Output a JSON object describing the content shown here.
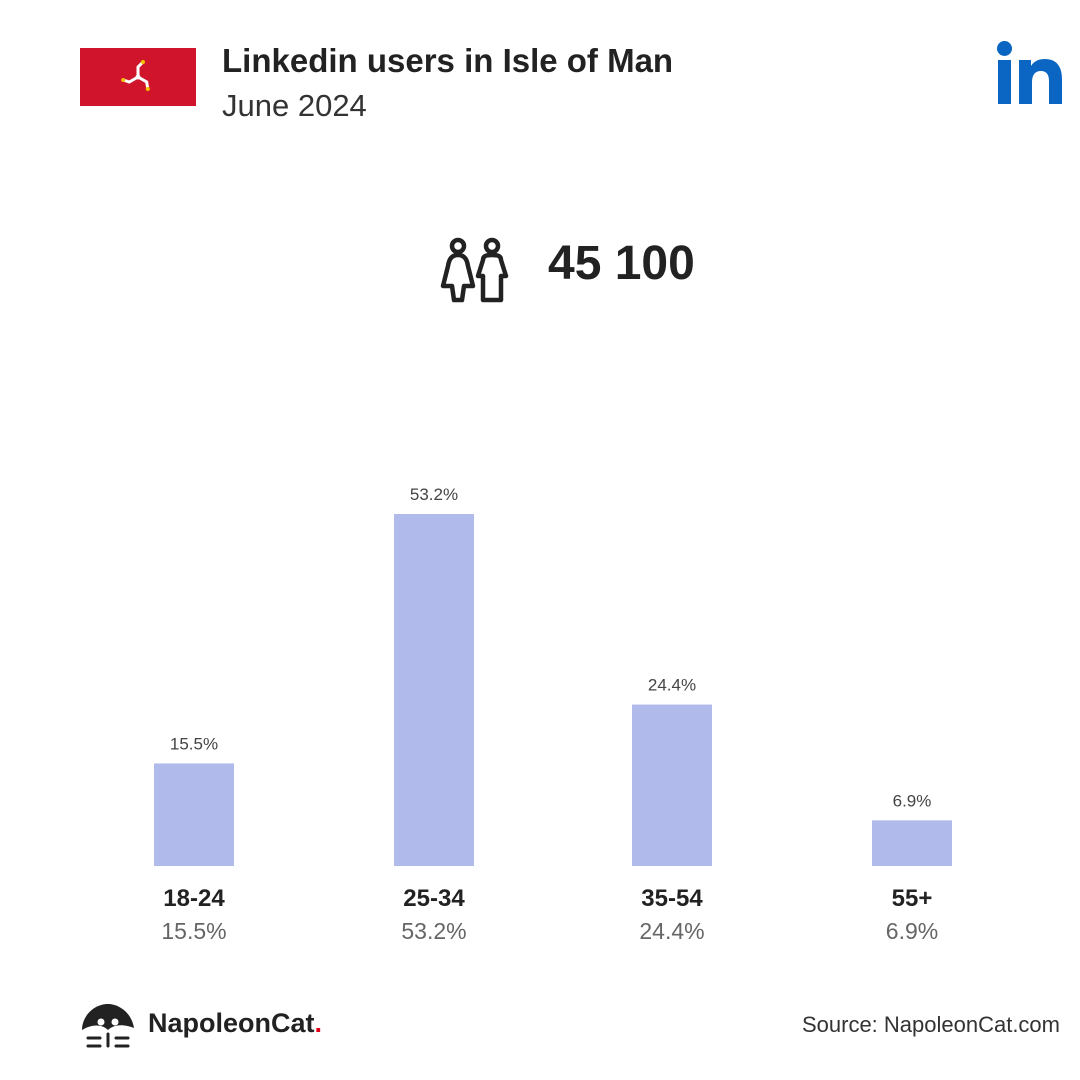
{
  "header": {
    "title": "Linkedin users in Isle of Man",
    "subtitle": "June 2024",
    "flag_color": "#cf142b",
    "flag_icon": "triskelion-icon",
    "brand_icon": "linkedin-icon",
    "brand_color": "#0a66c2"
  },
  "summary": {
    "icon": "users-icon",
    "total": "45 100"
  },
  "chart_data": {
    "type": "bar",
    "title": "",
    "xlabel": "",
    "ylabel": "",
    "categories": [
      "18-24",
      "25-34",
      "35-54",
      "55+"
    ],
    "values": [
      15.5,
      53.2,
      24.4,
      6.9
    ],
    "value_labels": [
      "15.5%",
      "53.2%",
      "24.4%",
      "6.9%"
    ],
    "ylim": [
      0,
      53.2
    ],
    "bar_color": "#b0baeb",
    "grid": false,
    "legend": "none"
  },
  "footer": {
    "brand": "NapoleonCat",
    "brand_dot": ".",
    "brand_icon": "napoleoncat-logo-icon",
    "source": "Source: NapoleonCat.com"
  }
}
